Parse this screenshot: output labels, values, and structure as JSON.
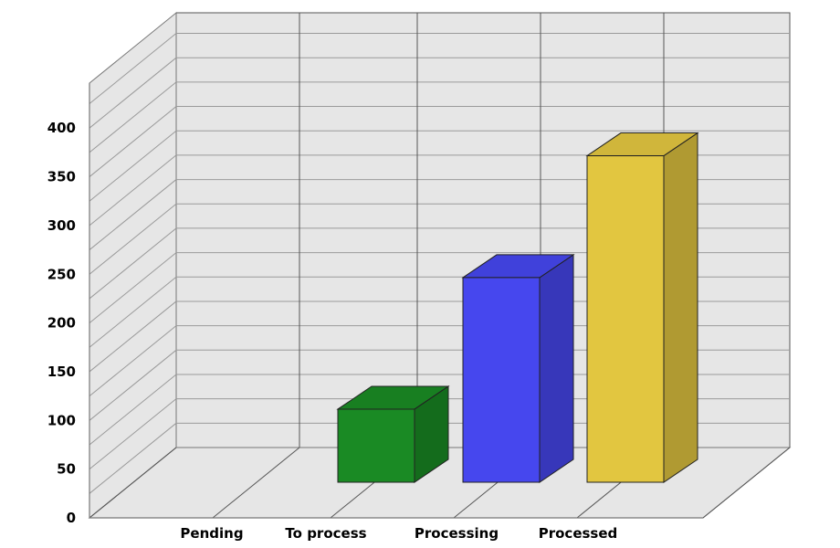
{
  "chart_data": {
    "type": "bar",
    "title": "",
    "xlabel": "",
    "ylabel": "",
    "categories": [
      "Pending",
      "To process",
      "Processing",
      "Processed"
    ],
    "values": [
      0,
      75,
      210,
      335
    ],
    "colors": [
      "#1a8a24",
      "#1a8a24",
      "#4647ee",
      "#e2c640"
    ],
    "ylim": [
      0,
      400
    ],
    "yticks": [
      "0",
      "50",
      "100",
      "150",
      "200",
      "250",
      "300",
      "350",
      "400"
    ],
    "grid": true,
    "style": "3d"
  }
}
